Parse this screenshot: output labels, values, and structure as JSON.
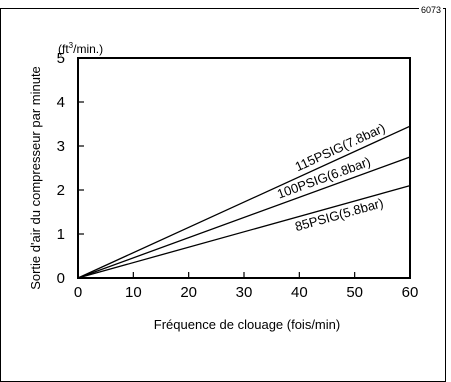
{
  "figure_code": "6073",
  "chart_data": {
    "type": "line",
    "y_unit": "(ft³/min.)",
    "xlabel": "Fréquence de clouage (fois/min)",
    "ylabel": "Sortie d'air du compresseur par minute",
    "xlim": [
      0,
      60
    ],
    "ylim": [
      0,
      5
    ],
    "x_ticks": [
      0,
      10,
      20,
      30,
      40,
      50,
      60
    ],
    "y_ticks": [
      0,
      1,
      2,
      3,
      4,
      5
    ],
    "grid": false,
    "series": [
      {
        "name": "115PSIG(7.8bar)",
        "x": [
          0,
          60
        ],
        "y": [
          0,
          3.45
        ]
      },
      {
        "name": "100PSIG(6.8bar)",
        "x": [
          0,
          60
        ],
        "y": [
          0,
          2.75
        ]
      },
      {
        "name": "85PSIG(5.8bar)",
        "x": [
          0,
          60
        ],
        "y": [
          0,
          2.1
        ]
      }
    ],
    "colors": {
      "line": "#000000",
      "background": "#ffffff"
    }
  }
}
